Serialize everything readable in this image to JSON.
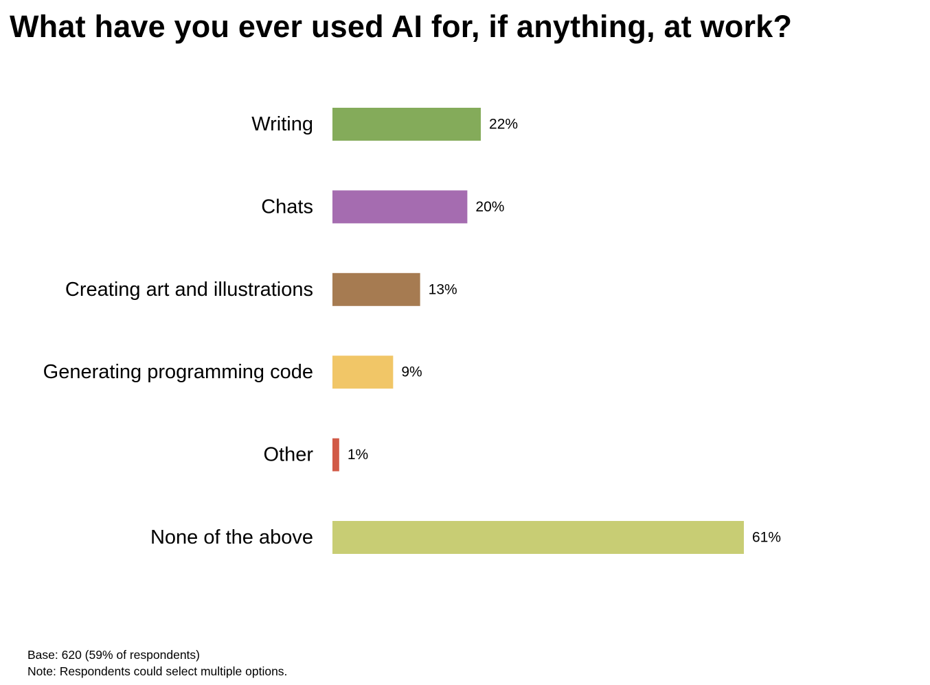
{
  "chart_data": {
    "type": "bar",
    "orientation": "horizontal",
    "title": "What have you ever used AI for, if anything, at work?",
    "xlabel": "",
    "ylabel": "",
    "unit": "%",
    "xlim": [
      0,
      61
    ],
    "grid": false,
    "categories": [
      "Writing",
      "Chats",
      "Creating art and illustrations",
      "Generating programming code",
      "Other",
      "None of the above"
    ],
    "values": [
      22,
      20,
      13,
      9,
      1,
      61
    ],
    "value_labels": [
      "22%",
      "20%",
      "13%",
      "9%",
      "1%",
      "61%"
    ],
    "colors": [
      "#84ab5a",
      "#a56cb0",
      "#a67b51",
      "#f1c667",
      "#d15a47",
      "#c8cd74"
    ]
  },
  "footnotes": {
    "base": "Base: 620 (59% of respondents)",
    "note": "Note: Respondents could select multiple options."
  }
}
